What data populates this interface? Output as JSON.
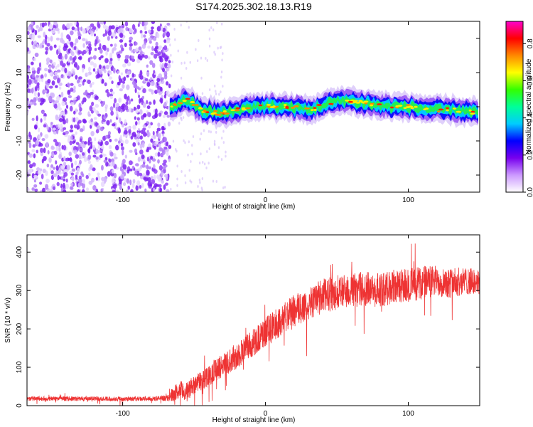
{
  "title": "S174.2025.302.18.13.R19",
  "chart_data": [
    {
      "type": "heatmap",
      "name": "spectrogram",
      "xlabel": "Height of straight line (km)",
      "ylabel": "Frequency (Hz)",
      "xlim": [
        -167,
        150
      ],
      "ylim": [
        -25,
        25
      ],
      "xticks": [
        -100,
        0,
        100
      ],
      "yticks": [
        -20,
        -10,
        0,
        10,
        20
      ],
      "xtick_labels": [
        "-100",
        "0",
        "100"
      ],
      "ytick_labels": [
        "-20",
        "-10",
        "0",
        "10",
        "20"
      ],
      "noise_region_x": [
        -167,
        -67
      ],
      "signal_start_x": -67,
      "centerline": [
        {
          "x": -67,
          "y": 0
        },
        {
          "x": -55,
          "y": 2
        },
        {
          "x": -45,
          "y": -1
        },
        {
          "x": -30,
          "y": -2
        },
        {
          "x": -20,
          "y": -1
        },
        {
          "x": -10,
          "y": 0
        },
        {
          "x": 0,
          "y": 0
        },
        {
          "x": 15,
          "y": 0
        },
        {
          "x": 30,
          "y": -1
        },
        {
          "x": 45,
          "y": 1
        },
        {
          "x": 55,
          "y": 2
        },
        {
          "x": 70,
          "y": 1
        },
        {
          "x": 85,
          "y": 0
        },
        {
          "x": 100,
          "y": 0
        },
        {
          "x": 120,
          "y": -1
        },
        {
          "x": 135,
          "y": -1
        },
        {
          "x": 150,
          "y": -2
        }
      ],
      "colorbar": {
        "label": "Normalized spectral amplitude",
        "range": [
          0,
          0.92
        ],
        "ticks": [
          0.0,
          0.2,
          0.4,
          0.6,
          0.8
        ],
        "tick_labels": [
          "0.0",
          "0.2",
          "0.4",
          "0.6",
          "0.8"
        ],
        "colors": [
          "#ffffff",
          "#cc99ff",
          "#7700ee",
          "#0000ff",
          "#00ccff",
          "#00ff99",
          "#33ff00",
          "#ffff00",
          "#ff8800",
          "#ff0000",
          "#ff00cc"
        ]
      }
    },
    {
      "type": "line",
      "name": "snr",
      "xlabel": "Height of straight line (km)",
      "ylabel": "SNR (10 * v/v)",
      "xlim": [
        -167,
        150
      ],
      "ylim": [
        0,
        445
      ],
      "xticks": [
        -100,
        0,
        100
      ],
      "yticks": [
        0,
        100,
        200,
        300,
        400
      ],
      "xtick_labels": [
        "-100",
        "0",
        "100"
      ],
      "ytick_labels": [
        "0",
        "100",
        "200",
        "300",
        "400"
      ],
      "color": "#ee3333",
      "series": [
        {
          "name": "SNR",
          "x": [
            -167,
            -140,
            -110,
            -80,
            -68,
            -65,
            -60,
            -55,
            -50,
            -45,
            -40,
            -30,
            -20,
            -10,
            0,
            10,
            20,
            30,
            40,
            50,
            60,
            70,
            80,
            90,
            100,
            110,
            120,
            130,
            140,
            150
          ],
          "y": [
            18,
            18,
            18,
            18,
            20,
            30,
            40,
            35,
            55,
            65,
            80,
            105,
            130,
            160,
            190,
            220,
            245,
            265,
            285,
            295,
            300,
            305,
            300,
            310,
            315,
            320,
            325,
            320,
            325,
            320
          ],
          "noise_amplitude": [
            6,
            6,
            6,
            6,
            8,
            20,
            25,
            25,
            25,
            25,
            30,
            30,
            35,
            35,
            40,
            40,
            45,
            45,
            45,
            45,
            45,
            45,
            45,
            45,
            45,
            45,
            40,
            40,
            35,
            35
          ]
        }
      ]
    }
  ]
}
